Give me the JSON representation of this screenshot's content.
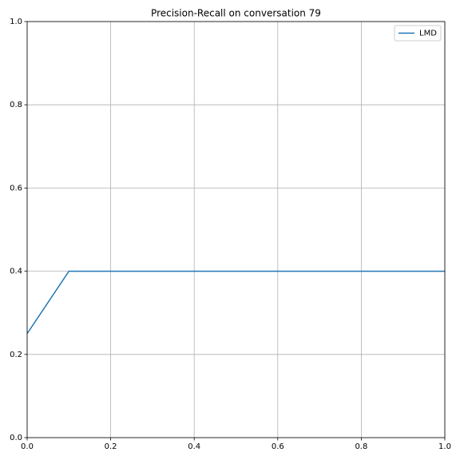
{
  "chart_data": {
    "type": "line",
    "title": "Precision-Recall on conversation 79",
    "x": [
      0,
      0.1,
      1.0
    ],
    "series": [
      {
        "name": "LMD",
        "color": "#1f77b4",
        "values": [
          0.25,
          0.4,
          0.4
        ]
      }
    ],
    "xlim": [
      0,
      1
    ],
    "ylim": [
      0,
      1
    ],
    "xticks": [
      {
        "value": 0,
        "label": "0.0"
      },
      0.2,
      0.4,
      0.6,
      0.8,
      {
        "value": 1,
        "label": "1.0"
      }
    ],
    "yticks": [
      {
        "value": 0,
        "label": "0.0"
      },
      0.2,
      0.4,
      0.6,
      0.8,
      {
        "value": 1,
        "label": "1.0"
      }
    ],
    "grid": true,
    "legend": "upper right"
  }
}
